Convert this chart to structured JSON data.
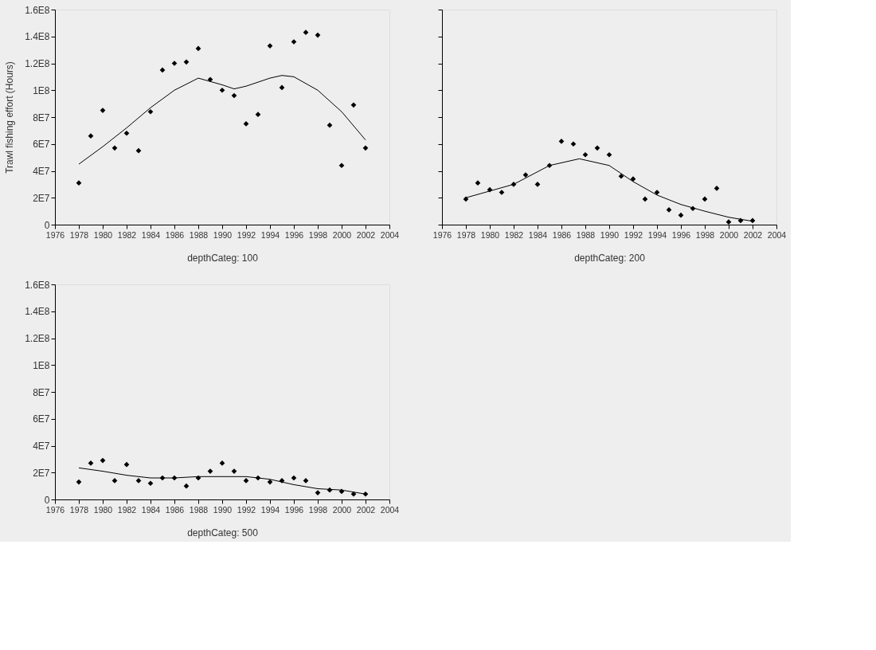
{
  "chart_data": [
    {
      "type": "scatter",
      "xlabel": "depthCateg: 100",
      "ylabel": "Trawl fishing effort (Hours)",
      "xlim": [
        1976,
        2004
      ],
      "xticks": [
        1976,
        1978,
        1980,
        1982,
        1984,
        1986,
        1988,
        1990,
        1992,
        1994,
        1996,
        1998,
        2000,
        2002,
        2004
      ],
      "ylim": [
        0,
        160000000
      ],
      "yticks": [
        {
          "value": 0,
          "label": "0"
        },
        {
          "value": 20000000,
          "label": "2E7"
        },
        {
          "value": 40000000,
          "label": "4E7"
        },
        {
          "value": 60000000,
          "label": "6E7"
        },
        {
          "value": 80000000,
          "label": "8E7"
        },
        {
          "value": 100000000,
          "label": "1E8"
        },
        {
          "value": 120000000,
          "label": "1.2E8"
        },
        {
          "value": 140000000,
          "label": "1.4E8"
        },
        {
          "value": 160000000,
          "label": "1.6E8"
        }
      ],
      "grid": false,
      "series": [
        {
          "marker": "diamond",
          "color": "#000000",
          "x": [
            1978,
            1979,
            1980,
            1981,
            1982,
            1983,
            1984,
            1985,
            1986,
            1987,
            1988,
            1989,
            1990,
            1991,
            1992,
            1993,
            1994,
            1995,
            1996,
            1997,
            1998,
            1999,
            2000,
            2001,
            2002
          ],
          "values": [
            31000000,
            66000000,
            85000000,
            57000000,
            68000000,
            55000000,
            84000000,
            115000000,
            120000000,
            121000000,
            131000000,
            108000000,
            100000000,
            96000000,
            75000000,
            82000000,
            133000000,
            102000000,
            136000000,
            143000000,
            141000000,
            74000000,
            44000000,
            89000000,
            57000000
          ]
        },
        {
          "type": "line",
          "color": "#000000",
          "line_style": "solid",
          "x": [
            1978,
            1980,
            1982,
            1984,
            1986,
            1988,
            1990,
            1991,
            1992,
            1994,
            1995,
            1996,
            1998,
            2000,
            2002
          ],
          "values": [
            45000000,
            58000000,
            72000000,
            87000000,
            100000000,
            109000000,
            104000000,
            101000000,
            103000000,
            109000000,
            111000000,
            110000000,
            100000000,
            84000000,
            63000000
          ]
        }
      ]
    },
    {
      "type": "scatter",
      "xlabel": "depthCateg: 200",
      "xlim": [
        1976,
        2004
      ],
      "xticks": [
        1976,
        1978,
        1980,
        1982,
        1984,
        1986,
        1988,
        1990,
        1992,
        1994,
        1996,
        1998,
        2000,
        2002,
        2004
      ],
      "ylim": [
        0,
        160000000
      ],
      "tick_labels": "x",
      "grid": false,
      "series": [
        {
          "marker": "diamond",
          "color": "#000000",
          "x": [
            1978,
            1979,
            1980,
            1981,
            1982,
            1983,
            1984,
            1985,
            1986,
            1987,
            1988,
            1989,
            1990,
            1991,
            1992,
            1993,
            1994,
            1995,
            1996,
            1997,
            1998,
            1999,
            2000,
            2001,
            2002
          ],
          "values": [
            19000000,
            31000000,
            26000000,
            24000000,
            30000000,
            37000000,
            30000000,
            44000000,
            62000000,
            60000000,
            52000000,
            57000000,
            52000000,
            36000000,
            34000000,
            19000000,
            24000000,
            11000000,
            7000000,
            12000000,
            19000000,
            27000000,
            2000000,
            3000000,
            3000000
          ]
        },
        {
          "type": "line",
          "color": "#000000",
          "line_style": "solid",
          "x": [
            1978,
            1982,
            1985,
            1987.5,
            1990,
            1992,
            1994,
            1996,
            1998,
            2000,
            2002
          ],
          "values": [
            20000000,
            30000000,
            44000000,
            49000000,
            44000000,
            32000000,
            22000000,
            15000000,
            10000000,
            5500000,
            2500000
          ]
        }
      ]
    },
    {
      "type": "scatter",
      "xlabel": "depthCateg: 500",
      "xlim": [
        1976,
        2004
      ],
      "xticks": [
        1976,
        1978,
        1980,
        1982,
        1984,
        1986,
        1988,
        1990,
        1992,
        1994,
        1996,
        1998,
        2000,
        2002,
        2004
      ],
      "ylim": [
        0,
        160000000
      ],
      "yticks": [
        {
          "value": 0,
          "label": "0"
        },
        {
          "value": 20000000,
          "label": "2E7"
        },
        {
          "value": 40000000,
          "label": "4E7"
        },
        {
          "value": 60000000,
          "label": "6E7"
        },
        {
          "value": 80000000,
          "label": "8E7"
        },
        {
          "value": 100000000,
          "label": "1E8"
        },
        {
          "value": 120000000,
          "label": "1.2E8"
        },
        {
          "value": 140000000,
          "label": "1.4E8"
        },
        {
          "value": 160000000,
          "label": "1.6E8"
        }
      ],
      "grid": false,
      "series": [
        {
          "marker": "diamond",
          "color": "#000000",
          "x": [
            1978,
            1979,
            1980,
            1981,
            1982,
            1983,
            1984,
            1985,
            1986,
            1987,
            1988,
            1989,
            1990,
            1991,
            1992,
            1993,
            1994,
            1995,
            1996,
            1997,
            1998,
            1999,
            2000,
            2001,
            2002
          ],
          "values": [
            13000000,
            27000000,
            29000000,
            14000000,
            26000000,
            14000000,
            12000000,
            16000000,
            16000000,
            10000000,
            16000000,
            21000000,
            27000000,
            21000000,
            14000000,
            16000000,
            13000000,
            14000000,
            16000000,
            14000000,
            5000000,
            7000000,
            6000000,
            4000000,
            4000000
          ]
        },
        {
          "type": "line",
          "color": "#000000",
          "line_style": "solid",
          "x": [
            1978,
            1980,
            1982,
            1984,
            1986,
            1988,
            1990,
            1992,
            1994,
            1996,
            1998,
            2000,
            2002
          ],
          "values": [
            23500000,
            21000000,
            18000000,
            16000000,
            16000000,
            17000000,
            17000000,
            17000000,
            15000000,
            11000000,
            8000000,
            7000000,
            4000000
          ]
        }
      ]
    }
  ]
}
